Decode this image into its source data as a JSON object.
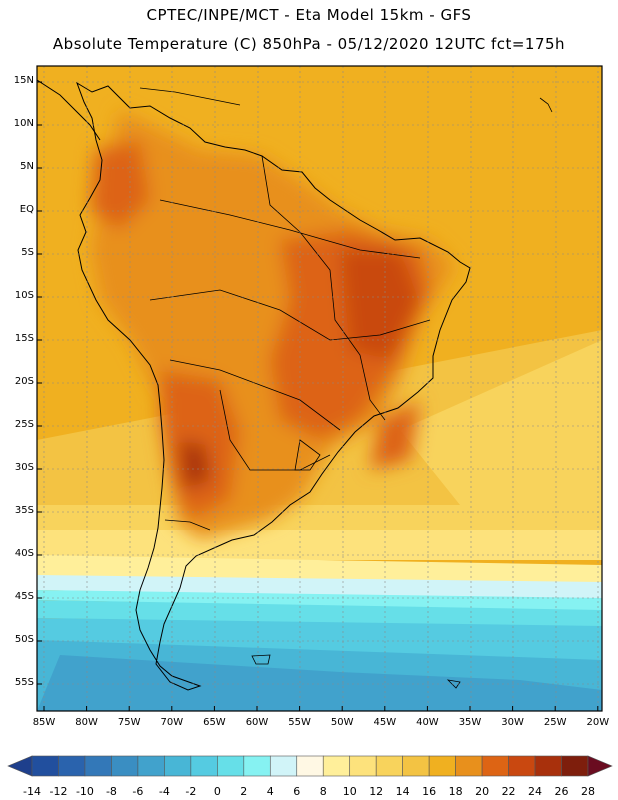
{
  "title_line1": "CPTEC/INPE/MCT -  Eta Model 15km - GFS",
  "title_line2": "Absolute Temperature (C) 850hPa - 05/12/2020 12UTC fct=175h",
  "lat_labels": [
    "15N",
    "10N",
    "5N",
    "EQ",
    "5S",
    "10S",
    "15S",
    "20S",
    "25S",
    "30S",
    "35S",
    "40S",
    "45S",
    "50S",
    "55S"
  ],
  "lon_labels": [
    "85W",
    "80W",
    "75W",
    "70W",
    "65W",
    "60W",
    "55W",
    "50W",
    "45W",
    "40W",
    "35W",
    "30W",
    "25W",
    "20W"
  ],
  "colorbar": {
    "labels": [
      "-14",
      "-12",
      "-10",
      "-8",
      "-6",
      "-4",
      "-2",
      "0",
      "2",
      "4",
      "6",
      "8",
      "10",
      "12",
      "14",
      "16",
      "18",
      "20",
      "22",
      "24",
      "26",
      "28"
    ],
    "colors": [
      "#1e3f8c",
      "#214f9e",
      "#2a63ad",
      "#3378b8",
      "#3a8ec2",
      "#41a2cc",
      "#48b6d6",
      "#55cbe1",
      "#66dfe8",
      "#86f2f2",
      "#d1f4f8",
      "#fff8e4",
      "#ffef9a",
      "#fde27c",
      "#f8d35c",
      "#f3c343",
      "#f0b020",
      "#e8901c",
      "#dd6414",
      "#c94810",
      "#a8300c",
      "#7e1e0c",
      "#6a0c20"
    ]
  }
}
